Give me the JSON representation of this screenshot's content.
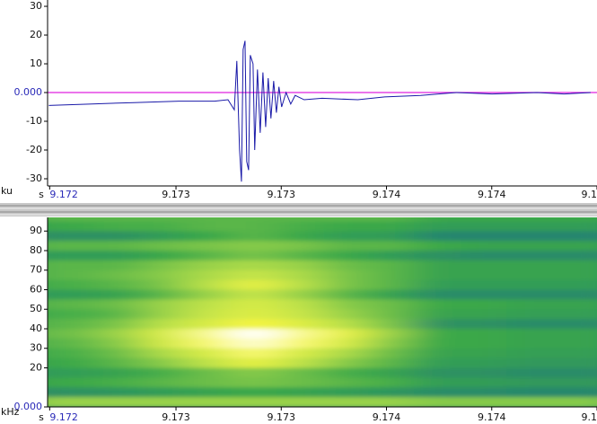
{
  "chart_data": [
    {
      "type": "line",
      "xlabel": "s",
      "ylabel": "ku",
      "color": "#1a1aa8",
      "zero_line_color": "#e020e0",
      "xlim": [
        9.17239,
        9.175
      ],
      "ylim": [
        -32.5,
        32.2
      ],
      "xticks": [
        {
          "value": 9.1724,
          "label": "9.172"
        },
        {
          "value": 9.173,
          "label": "9.173"
        },
        {
          "value": 9.1735,
          "label": "9.173"
        },
        {
          "value": 9.174,
          "label": "9.174"
        },
        {
          "value": 9.1745,
          "label": "9.174"
        },
        {
          "value": 9.175,
          "label": "9.1"
        }
      ],
      "yticks": [
        -30,
        -20,
        -10,
        {
          "value": 0,
          "label": "0.000"
        },
        10,
        20,
        30
      ],
      "x": [
        9.172396,
        9.172587,
        9.1728,
        9.173013,
        9.173183,
        9.173247,
        9.173277,
        9.173289,
        9.173302,
        9.173311,
        9.173319,
        9.173328,
        9.173336,
        9.173345,
        9.173353,
        9.173366,
        9.173374,
        9.173387,
        9.1734,
        9.173413,
        9.173426,
        9.173438,
        9.173451,
        9.173464,
        9.173477,
        9.173489,
        9.173502,
        9.173523,
        9.173545,
        9.173566,
        9.173609,
        9.173694,
        9.173864,
        9.173991,
        9.174162,
        9.174332,
        9.174502,
        9.174715,
        9.174843,
        9.17497
      ],
      "values": [
        -4.5,
        -4,
        -3.5,
        -3,
        -3,
        -2.5,
        -6,
        11,
        -20,
        -31,
        15,
        18,
        -24,
        -27,
        13,
        10,
        -20,
        8,
        -14,
        7,
        -12,
        5,
        -9,
        4,
        -7,
        2,
        -5,
        0,
        -4,
        -1,
        -2.5,
        -2,
        -2.5,
        -1.5,
        -1,
        0,
        -0.5,
        0,
        -0.5,
        0
      ]
    },
    {
      "type": "heatmap",
      "xlabel": "s",
      "ylabel": "kHz",
      "xlim": [
        9.17239,
        9.175
      ],
      "ylim": [
        0,
        97
      ],
      "zlim": [
        0,
        100
      ],
      "colors": [
        "#14286a",
        "#1f7a7a",
        "#3aa84a",
        "#b8e04a",
        "#f5f542",
        "#ffffff"
      ],
      "xticks": [
        {
          "value": 9.1724,
          "label": "9.172"
        },
        {
          "value": 9.173,
          "label": "9.173"
        },
        {
          "value": 9.1735,
          "label": "9.173"
        },
        {
          "value": 9.174,
          "label": "9.174"
        },
        {
          "value": 9.1745,
          "label": "9.174"
        },
        {
          "value": 9.175,
          "label": "9.1"
        }
      ],
      "yticks": [
        {
          "value": 0,
          "label": "0.000"
        },
        20,
        30,
        40,
        50,
        60,
        70,
        80,
        90
      ],
      "x": [
        9.1725,
        9.17272,
        9.17294,
        9.17315,
        9.17337,
        9.17359,
        9.17381,
        9.17402,
        9.17424,
        9.17446,
        9.17468,
        9.17489
      ],
      "y": [
        97.5,
        92.5,
        87.5,
        82.5,
        77.5,
        72.5,
        67.5,
        62.5,
        57.5,
        52.5,
        47.5,
        42.5,
        37.5,
        32.5,
        27.5,
        22.5,
        17.5,
        12.5,
        7.5,
        2.5
      ],
      "values": [
        [
          45,
          45,
          45,
          45,
          45,
          45,
          45,
          45,
          40,
          40,
          40,
          40
        ],
        [
          40,
          42,
          42,
          45,
          45,
          42,
          40,
          40,
          35,
          35,
          35,
          35
        ],
        [
          30,
          30,
          35,
          40,
          45,
          40,
          35,
          35,
          25,
          25,
          25,
          25
        ],
        [
          45,
          45,
          48,
          50,
          52,
          50,
          45,
          45,
          40,
          38,
          38,
          38
        ],
        [
          35,
          35,
          40,
          45,
          50,
          45,
          40,
          35,
          30,
          28,
          28,
          28
        ],
        [
          45,
          45,
          50,
          55,
          58,
          55,
          48,
          45,
          38,
          38,
          38,
          38
        ],
        [
          45,
          48,
          52,
          58,
          65,
          58,
          50,
          45,
          38,
          38,
          38,
          38
        ],
        [
          42,
          45,
          50,
          60,
          75,
          60,
          50,
          45,
          35,
          35,
          35,
          35
        ],
        [
          35,
          38,
          45,
          55,
          65,
          55,
          45,
          38,
          28,
          28,
          28,
          28
        ],
        [
          45,
          48,
          55,
          62,
          70,
          62,
          52,
          48,
          40,
          40,
          38,
          38
        ],
        [
          42,
          45,
          55,
          65,
          72,
          65,
          55,
          48,
          38,
          38,
          36,
          36
        ],
        [
          45,
          50,
          60,
          70,
          80,
          72,
          60,
          50,
          30,
          30,
          28,
          28
        ],
        [
          48,
          55,
          70,
          88,
          100,
          88,
          75,
          55,
          40,
          40,
          38,
          38
        ],
        [
          45,
          52,
          68,
          85,
          95,
          85,
          70,
          52,
          40,
          40,
          38,
          38
        ],
        [
          42,
          48,
          58,
          70,
          85,
          70,
          58,
          48,
          38,
          38,
          36,
          36
        ],
        [
          40,
          45,
          52,
          62,
          75,
          62,
          52,
          45,
          35,
          35,
          33,
          33
        ],
        [
          35,
          38,
          42,
          48,
          52,
          48,
          42,
          38,
          30,
          30,
          28,
          28
        ],
        [
          40,
          42,
          45,
          48,
          50,
          48,
          45,
          42,
          35,
          35,
          33,
          33
        ],
        [
          30,
          32,
          35,
          38,
          40,
          38,
          35,
          32,
          28,
          28,
          26,
          26
        ],
        [
          55,
          55,
          55,
          55,
          55,
          55,
          55,
          55,
          52,
          52,
          52,
          52
        ]
      ]
    }
  ]
}
